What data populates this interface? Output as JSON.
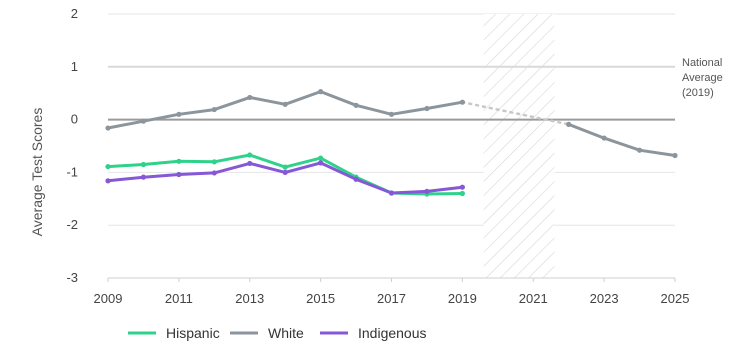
{
  "chart_data": {
    "type": "line",
    "ylabel": "Average Test Scores",
    "xlim": [
      2009,
      2025
    ],
    "ylim": [
      -3,
      2
    ],
    "x_ticks": [
      2009,
      2011,
      2013,
      2015,
      2017,
      2019,
      2021,
      2023,
      2025
    ],
    "y_ticks": [
      2,
      1,
      0,
      -1,
      -2,
      -3
    ],
    "grid": "horizontal",
    "gap_region": [
      2019.6,
      2021.6
    ],
    "reference_lines": [
      {
        "y": 1,
        "label": "National Average (2019)",
        "color": "#d9d9d9"
      },
      {
        "y": 0,
        "color": "#9a9a9a"
      }
    ],
    "annotation_lines": [
      "National",
      "Average",
      "(2019)"
    ],
    "series": [
      {
        "name": "Hispanic",
        "color": "#2fd28a",
        "points": [
          [
            2009,
            -0.89
          ],
          [
            2010,
            -0.85
          ],
          [
            2011,
            -0.79
          ],
          [
            2012,
            -0.8
          ],
          [
            2013,
            -0.67
          ],
          [
            2014,
            -0.9
          ],
          [
            2015,
            -0.73
          ],
          [
            2016,
            -1.09
          ],
          [
            2017,
            -1.39
          ],
          [
            2018,
            -1.41
          ],
          [
            2019,
            -1.4
          ]
        ]
      },
      {
        "name": "White",
        "color": "#8c959c",
        "points": [
          [
            2009,
            -0.16
          ],
          [
            2010,
            -0.03
          ],
          [
            2011,
            0.1
          ],
          [
            2012,
            0.19
          ],
          [
            2013,
            0.42
          ],
          [
            2014,
            0.29
          ],
          [
            2015,
            0.53
          ],
          [
            2016,
            0.27
          ],
          [
            2017,
            0.1
          ],
          [
            2018,
            0.21
          ],
          [
            2019,
            0.33
          ],
          [
            2022,
            -0.09
          ],
          [
            2023,
            -0.35
          ],
          [
            2024,
            -0.58
          ],
          [
            2025,
            -0.68
          ]
        ],
        "dotted_bridge": [
          [
            2019,
            0.33
          ],
          [
            2022,
            -0.09
          ]
        ]
      },
      {
        "name": "Indigenous",
        "color": "#8657d6",
        "points": [
          [
            2009,
            -1.16
          ],
          [
            2010,
            -1.09
          ],
          [
            2011,
            -1.04
          ],
          [
            2012,
            -1.01
          ],
          [
            2013,
            -0.83
          ],
          [
            2014,
            -1.0
          ],
          [
            2015,
            -0.82
          ],
          [
            2016,
            -1.13
          ],
          [
            2017,
            -1.39
          ],
          [
            2018,
            -1.36
          ],
          [
            2019,
            -1.28
          ]
        ]
      }
    ],
    "legend": {
      "placement": "bottom-left",
      "items": [
        "Hispanic",
        "White",
        "Indigenous"
      ]
    }
  }
}
